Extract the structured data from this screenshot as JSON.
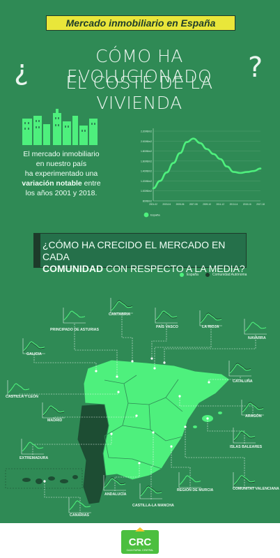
{
  "header": {
    "banner": "Mercado inmobiliario en España",
    "question_open": "¿",
    "question_close": "?",
    "title_line1": "CÓMO HA EVOLUCIONADO",
    "title_line2": "EL COSTE DE LA VIVIENDA"
  },
  "intro": {
    "line1": "El mercado inmobiliario",
    "line2": "en nuestro país",
    "line3": "ha experimentado una",
    "line4_bold": "variación notable",
    "line4_rest": " entre",
    "line5": "los años 2001 y 2018."
  },
  "chart_data": {
    "type": "line",
    "x": [
      "2001-02",
      "2002-03",
      "2003-04",
      "2004-05",
      "2005-06",
      "2006-07",
      "2007-08",
      "2008-09",
      "2009-10",
      "2010-11",
      "2011-12",
      "2012-13",
      "2013-14",
      "2014-15",
      "2015-16",
      "2016-17",
      "2017-18"
    ],
    "series": [
      {
        "name": "España",
        "values": [
          1050,
          1200,
          1370,
          1560,
          1760,
          1980,
          2050,
          1960,
          1840,
          1740,
          1640,
          1490,
          1380,
          1360,
          1380,
          1400,
          1450
        ]
      }
    ],
    "ylim": [
      800,
      2200
    ],
    "yticks": [
      "800€/m2",
      "1.000€/m2",
      "1.200€/m2",
      "1.400€/m2",
      "1.600€/m2",
      "1.800€/m2",
      "2.000€/m2",
      "2.200€/m2"
    ],
    "ytick_values": [
      800,
      1000,
      1200,
      1400,
      1600,
      1800,
      2000,
      2200
    ],
    "legend": "bottom-left",
    "grid": true,
    "color": "#4ef07d"
  },
  "section2": {
    "line1": "¿CÓMO HA CRECIDO EL MERCADO EN CADA",
    "line2_bold": "COMUNIDAD",
    "line2_rest": " CON RESPECTO A LA MEDIA?",
    "legend_spain": "España",
    "legend_ca": "Comunidad Autónoma",
    "color_spain": "#4ef07d",
    "color_ca": "#1d3b2a"
  },
  "regions": [
    {
      "id": "cantabria",
      "label": "CANTABRIA"
    },
    {
      "id": "asturias",
      "label": "PRINCIPADO DE ASTURIAS"
    },
    {
      "id": "pais-vasco",
      "label": "PAÍS VASCO"
    },
    {
      "id": "la-rioja",
      "label": "LA RIOJA"
    },
    {
      "id": "navarra",
      "label": "NAVARRA"
    },
    {
      "id": "galicia",
      "label": "GALICIA"
    },
    {
      "id": "cataluna",
      "label": "CATALUÑA"
    },
    {
      "id": "castilla-leon",
      "label": "CASTILLA Y LEÓN"
    },
    {
      "id": "madrid",
      "label": "MADRID"
    },
    {
      "id": "aragon",
      "label": "ARAGÓN"
    },
    {
      "id": "extremadura",
      "label": "EXTREMADURA"
    },
    {
      "id": "baleares",
      "label": "ISLAS BALEARES"
    },
    {
      "id": "andalucia",
      "label": "ANDALUCÍA"
    },
    {
      "id": "murcia",
      "label": "REGIÓN DE MURCIA"
    },
    {
      "id": "valenciana",
      "label": "COMUNITAT VALENCIANA"
    },
    {
      "id": "castilla-la-mancha",
      "label": "CASTILLA-LA MANCHA"
    },
    {
      "id": "canarias",
      "label": "CANARIAS"
    }
  ],
  "footer": {
    "logo_text": "CRC",
    "logo_sub": "CAJA RURAL CENTRAL"
  }
}
